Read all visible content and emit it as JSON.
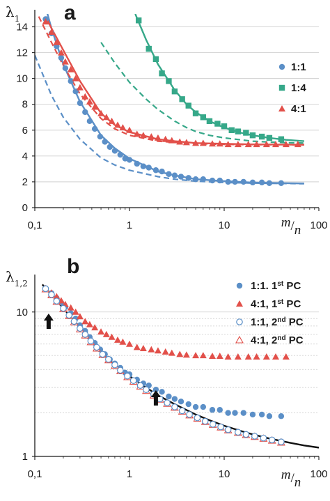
{
  "chart_data": [
    {
      "panel": "a",
      "type": "line",
      "ylabel": "λ1",
      "xlabel": "m/n",
      "xscale": "log",
      "xlim": [
        0.1,
        100
      ],
      "ylim": [
        0,
        15
      ],
      "xticks": [
        "0,1",
        "1",
        "10",
        "100"
      ],
      "yticks": [
        "0",
        "2",
        "4",
        "6",
        "8",
        "10",
        "12",
        "14"
      ],
      "grid": "horizontal",
      "legend_position": "right",
      "colors": {
        "1:1": "#5b8fc7",
        "1:4": "#36a889",
        "4:1": "#e2504a"
      },
      "series": [
        {
          "name": "1:1",
          "marker": "circle",
          "fit": "solid",
          "x": [
            0.13,
            0.15,
            0.17,
            0.19,
            0.21,
            0.24,
            0.27,
            0.3,
            0.34,
            0.38,
            0.43,
            0.49,
            0.55,
            0.62,
            0.7,
            0.8,
            0.9,
            1.0,
            1.2,
            1.4,
            1.6,
            1.9,
            2.2,
            2.6,
            3.0,
            3.5,
            4.2,
            5.0,
            6.0,
            7.5,
            9.0,
            11,
            13,
            16,
            20,
            25,
            30,
            40
          ],
          "y": [
            14.6,
            13.5,
            12.5,
            11.6,
            10.8,
            9.8,
            9.0,
            8.1,
            7.4,
            6.7,
            6.1,
            5.5,
            5.1,
            4.7,
            4.4,
            4.1,
            3.8,
            3.7,
            3.4,
            3.2,
            3.1,
            2.9,
            2.8,
            2.6,
            2.5,
            2.4,
            2.3,
            2.2,
            2.2,
            2.1,
            2.1,
            2.0,
            2.0,
            2.0,
            1.95,
            1.95,
            1.9,
            1.9
          ],
          "fit_x": [
            0.1,
            0.15,
            0.2,
            0.3,
            0.5,
            0.7,
            1,
            2,
            3,
            5,
            10,
            20,
            40,
            70
          ],
          "fit_y": [
            18.5,
            13.9,
            11.1,
            8.2,
            5.6,
            4.6,
            3.8,
            2.8,
            2.5,
            2.2,
            2.05,
            1.95,
            1.9,
            1.87
          ],
          "dashed_x": [
            0.1,
            0.15,
            0.2,
            0.3,
            0.5,
            0.7,
            1,
            2,
            3,
            5,
            10,
            20,
            40,
            70
          ],
          "dashed_y": [
            11.8,
            8.7,
            7.0,
            5.3,
            3.85,
            3.3,
            2.9,
            2.4,
            2.2,
            2.05,
            1.95,
            1.9,
            1.87,
            1.85
          ]
        },
        {
          "name": "1:4",
          "marker": "square",
          "fit": "solid",
          "x": [
            1.25,
            1.6,
            1.9,
            2.2,
            2.6,
            3.0,
            3.6,
            4.2,
            5.0,
            6.0,
            7.0,
            8.5,
            10,
            12,
            14,
            17,
            20,
            25,
            30,
            40
          ],
          "y": [
            14.5,
            12.3,
            11.5,
            10.4,
            9.8,
            9.0,
            8.4,
            7.9,
            7.3,
            7.0,
            6.7,
            6.5,
            6.3,
            6.0,
            5.9,
            5.8,
            5.6,
            5.5,
            5.4,
            5.3
          ],
          "fit_x": [
            1.15,
            1.5,
            2,
            3,
            4,
            5,
            7,
            10,
            15,
            20,
            30,
            45,
            70
          ],
          "fit_y": [
            15.0,
            13.0,
            11.1,
            9.1,
            8.0,
            7.4,
            6.7,
            6.2,
            5.8,
            5.6,
            5.4,
            5.25,
            5.15
          ],
          "dashed_x": [
            0.5,
            0.7,
            1,
            1.5,
            2,
            3,
            4,
            5,
            7,
            10,
            15,
            20,
            30,
            45,
            70
          ],
          "dashed_y": [
            12.8,
            11.2,
            9.7,
            8.4,
            7.6,
            6.7,
            6.2,
            5.9,
            5.6,
            5.4,
            5.25,
            5.15,
            5.08,
            5.03,
            5.0
          ]
        },
        {
          "name": "4:1",
          "marker": "triangle",
          "fit": "solid",
          "x": [
            0.13,
            0.15,
            0.17,
            0.19,
            0.21,
            0.24,
            0.27,
            0.3,
            0.34,
            0.38,
            0.43,
            0.5,
            0.57,
            0.65,
            0.75,
            0.85,
            1.0,
            1.2,
            1.4,
            1.7,
            2.0,
            2.4,
            2.8,
            3.4,
            4.0,
            5.0,
            6.0,
            7.5,
            9.0,
            11,
            14,
            18,
            22,
            28,
            35,
            45,
            60
          ],
          "y": [
            14.4,
            13.6,
            12.8,
            12.0,
            11.3,
            10.7,
            10.0,
            9.3,
            8.6,
            8.2,
            7.8,
            7.3,
            7.0,
            6.7,
            6.4,
            6.2,
            6.0,
            5.7,
            5.6,
            5.5,
            5.4,
            5.3,
            5.2,
            5.1,
            5.05,
            5.0,
            5.0,
            4.95,
            4.95,
            4.9,
            4.9,
            4.9,
            4.9,
            4.9,
            4.9,
            4.9,
            4.9
          ],
          "fit_x": [
            0.13,
            0.15,
            0.2,
            0.3,
            0.5,
            0.7,
            1,
            2,
            3,
            5,
            10,
            20,
            40,
            70
          ],
          "fit_y": [
            14.8,
            13.9,
            12.2,
            9.8,
            7.3,
            6.4,
            5.85,
            5.3,
            5.15,
            5.0,
            4.95,
            4.9,
            4.88,
            4.87
          ],
          "dashed_x": [
            0.11,
            0.15,
            0.2,
            0.3,
            0.5,
            0.7,
            1,
            2,
            3,
            5,
            10,
            20,
            40,
            70
          ],
          "dashed_y": [
            14.8,
            12.8,
            11.0,
            8.8,
            6.9,
            6.1,
            5.6,
            5.15,
            5.05,
            4.95,
            4.9,
            4.88,
            4.87,
            4.86
          ]
        }
      ]
    },
    {
      "panel": "b",
      "type": "scatter",
      "ylabel": "λ1,2",
      "xlabel": "m/n",
      "xscale": "log",
      "yscale": "log",
      "xlim": [
        0.1,
        100
      ],
      "ylim": [
        1,
        17
      ],
      "xticks": [
        "0,1",
        "1",
        "10",
        "100"
      ],
      "yticks": [
        "1",
        "10"
      ],
      "grid": "horizontal",
      "legend_position": "top-right",
      "colors": {
        "first_1_1": "#5b8fc7",
        "first_4_1": "#e2504a",
        "second_1_1": "#5b8fc7",
        "second_4_1": "#e2504a",
        "curve": "#111111",
        "arrow": "#111111"
      },
      "arrows_at_x": [
        0.14,
        1.9
      ],
      "series": [
        {
          "name": "1:1. 1st PC",
          "marker": "circle-filled",
          "x": [
            0.13,
            0.15,
            0.17,
            0.19,
            0.21,
            0.24,
            0.27,
            0.3,
            0.34,
            0.38,
            0.43,
            0.49,
            0.55,
            0.62,
            0.7,
            0.8,
            0.9,
            1.0,
            1.2,
            1.4,
            1.6,
            1.9,
            2.2,
            2.6,
            3.0,
            3.5,
            4.2,
            5.0,
            6.0,
            7.5,
            9.0,
            11,
            13,
            16,
            20,
            25,
            30,
            40
          ],
          "y": [
            14.6,
            13.5,
            12.5,
            11.6,
            10.8,
            9.8,
            9.0,
            8.1,
            7.4,
            6.7,
            6.1,
            5.5,
            5.1,
            4.7,
            4.4,
            4.1,
            3.8,
            3.7,
            3.4,
            3.2,
            3.1,
            2.9,
            2.8,
            2.6,
            2.5,
            2.4,
            2.3,
            2.2,
            2.2,
            2.1,
            2.1,
            2.0,
            2.0,
            2.0,
            1.95,
            1.95,
            1.9,
            1.9
          ]
        },
        {
          "name": "4:1, 1st PC",
          "marker": "triangle-filled",
          "x": [
            0.13,
            0.15,
            0.17,
            0.19,
            0.21,
            0.24,
            0.27,
            0.3,
            0.34,
            0.38,
            0.43,
            0.5,
            0.57,
            0.65,
            0.75,
            0.85,
            1.0,
            1.2,
            1.4,
            1.7,
            2.0,
            2.4,
            2.8,
            3.4,
            4.0,
            5.0,
            6.0,
            7.5,
            9.0,
            11,
            14,
            18,
            22,
            28,
            35,
            45
          ],
          "y": [
            14.4,
            13.6,
            12.8,
            12.0,
            11.3,
            10.7,
            10.0,
            9.3,
            8.6,
            8.2,
            7.8,
            7.3,
            7.0,
            6.7,
            6.4,
            6.2,
            6.0,
            5.7,
            5.6,
            5.5,
            5.4,
            5.3,
            5.2,
            5.1,
            5.05,
            5.0,
            5.0,
            4.95,
            4.95,
            4.9,
            4.9,
            4.9,
            4.9,
            4.9,
            4.9,
            4.9
          ]
        },
        {
          "name": "1:1, 2nd PC",
          "marker": "circle-open",
          "x": [
            0.13,
            0.15,
            0.17,
            0.2,
            0.23,
            0.26,
            0.3,
            0.34,
            0.39,
            0.45,
            0.52,
            0.6,
            0.7,
            0.8,
            0.95,
            1.1,
            1.3,
            1.5,
            1.8,
            2.1,
            2.5,
            3.0,
            3.6,
            4.3,
            5.2,
            6.3,
            7.6,
            9.2,
            11,
            14,
            17,
            21,
            26,
            32,
            40
          ],
          "y": [
            14.5,
            13.2,
            11.9,
            10.6,
            9.5,
            8.6,
            7.7,
            7.0,
            6.3,
            5.7,
            5.1,
            4.7,
            4.3,
            3.95,
            3.6,
            3.35,
            3.1,
            2.9,
            2.7,
            2.5,
            2.35,
            2.2,
            2.07,
            1.95,
            1.85,
            1.75,
            1.67,
            1.6,
            1.53,
            1.47,
            1.42,
            1.38,
            1.34,
            1.3,
            1.26
          ]
        },
        {
          "name": "4:1, 2nd PC",
          "marker": "triangle-open",
          "x": [
            0.13,
            0.15,
            0.17,
            0.2,
            0.23,
            0.26,
            0.3,
            0.34,
            0.39,
            0.45,
            0.52,
            0.6,
            0.7,
            0.8,
            0.95,
            1.1,
            1.3,
            1.5,
            1.8,
            2.1,
            2.5,
            3.0,
            3.6,
            4.3,
            5.2,
            6.3,
            7.6,
            9.2,
            11,
            14,
            17,
            21,
            26,
            32,
            40
          ],
          "y": [
            14.4,
            13.1,
            11.8,
            10.5,
            9.4,
            8.5,
            7.6,
            6.9,
            6.2,
            5.6,
            5.05,
            4.65,
            4.25,
            3.9,
            3.55,
            3.3,
            3.05,
            2.85,
            2.65,
            2.48,
            2.32,
            2.18,
            2.05,
            1.93,
            1.83,
            1.74,
            1.66,
            1.59,
            1.52,
            1.46,
            1.41,
            1.37,
            1.33,
            1.29,
            1.25
          ]
        },
        {
          "name": "",
          "marker": "none",
          "line": "solid",
          "x": [
            0.12,
            0.15,
            0.2,
            0.3,
            0.5,
            0.7,
            1,
            1.5,
            2,
            3,
            5,
            7,
            10,
            15,
            20,
            30,
            50,
            70,
            100
          ],
          "y": [
            15.5,
            13.2,
            10.6,
            7.8,
            5.25,
            4.3,
            3.6,
            3.0,
            2.65,
            2.3,
            1.95,
            1.78,
            1.63,
            1.5,
            1.42,
            1.33,
            1.24,
            1.19,
            1.15
          ]
        }
      ]
    }
  ]
}
